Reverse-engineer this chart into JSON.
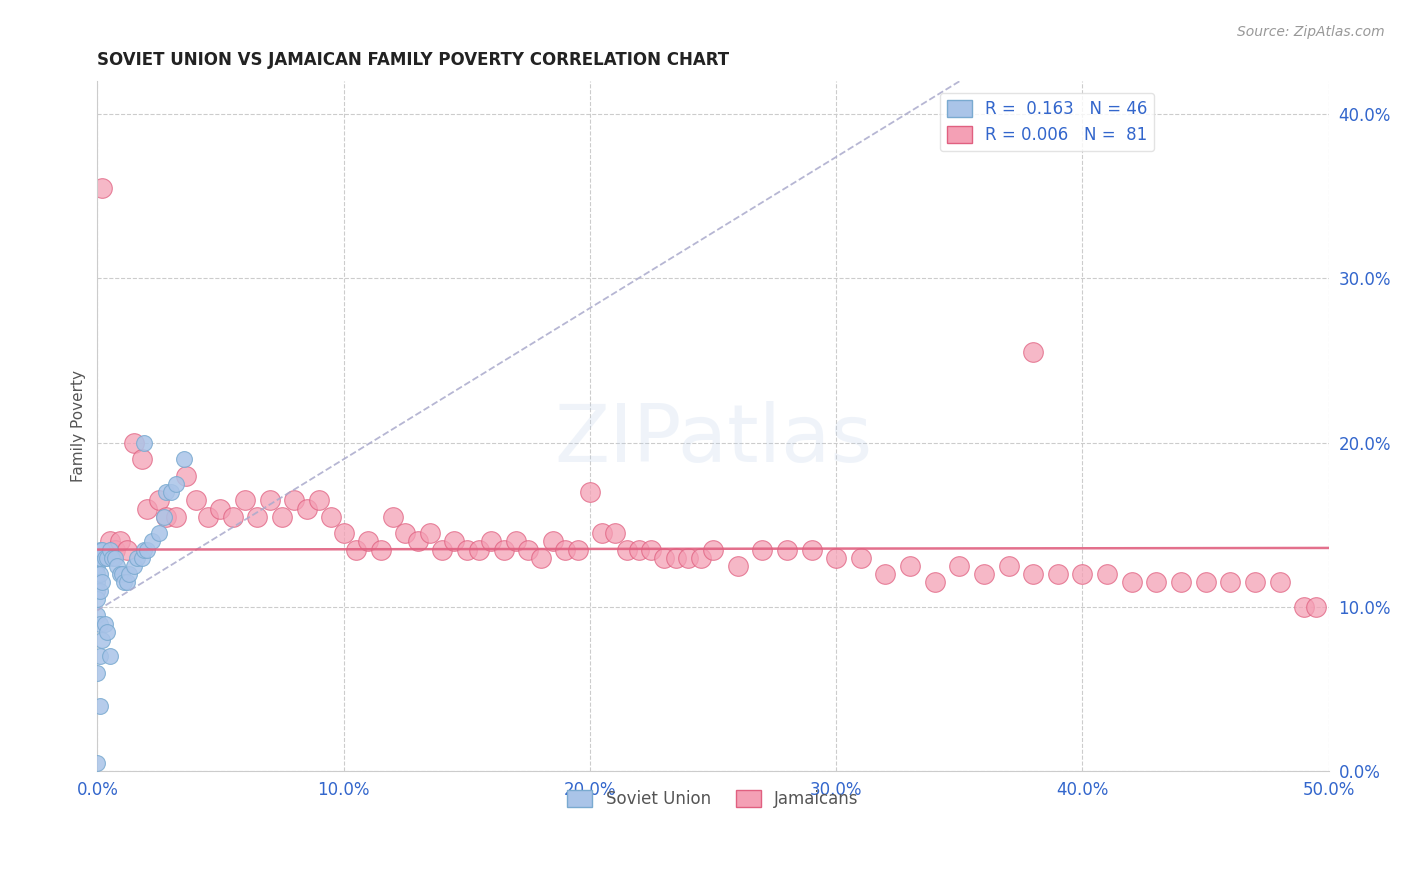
{
  "title": "SOVIET UNION VS JAMAICAN FAMILY POVERTY CORRELATION CHART",
  "source": "Source: ZipAtlas.com",
  "ylabel": "Family Poverty",
  "xlim": [
    0.0,
    0.5
  ],
  "ylim": [
    0.0,
    0.42
  ],
  "xticks": [
    0.0,
    0.1,
    0.2,
    0.3,
    0.4,
    0.5
  ],
  "xtick_labels": [
    "0.0%",
    "10.0%",
    "20.0%",
    "30.0%",
    "40.0%",
    "50.0%"
  ],
  "ytick_labels_right": [
    "0.0%",
    "10.0%",
    "20.0%",
    "30.0%",
    "40.0%"
  ],
  "yticks_right": [
    0.0,
    0.1,
    0.2,
    0.3,
    0.4
  ],
  "grid_color": "#cccccc",
  "background_color": "#ffffff",
  "soviet_color": "#aac4e8",
  "soviet_edge_color": "#7aaad0",
  "jamaican_color": "#f4a0b5",
  "jamaican_edge_color": "#e06080",
  "soviet_R": 0.163,
  "soviet_N": 46,
  "jamaican_R": 0.006,
  "jamaican_N": 81,
  "watermark_text": "ZIPatlas",
  "soviet_scatter_x": [
    0.0,
    0.0,
    0.0,
    0.0,
    0.0,
    0.0,
    0.0,
    0.0,
    0.0,
    0.001,
    0.001,
    0.001,
    0.001,
    0.001,
    0.001,
    0.001,
    0.002,
    0.002,
    0.002,
    0.003,
    0.003,
    0.004,
    0.004,
    0.005,
    0.005,
    0.006,
    0.007,
    0.008,
    0.009,
    0.01,
    0.011,
    0.012,
    0.013,
    0.015,
    0.016,
    0.018,
    0.019,
    0.02,
    0.022,
    0.025,
    0.027,
    0.028,
    0.03,
    0.032,
    0.035,
    0.019
  ],
  "soviet_scatter_y": [
    0.13,
    0.125,
    0.12,
    0.115,
    0.11,
    0.105,
    0.095,
    0.06,
    0.005,
    0.135,
    0.13,
    0.12,
    0.11,
    0.09,
    0.07,
    0.04,
    0.135,
    0.115,
    0.08,
    0.13,
    0.09,
    0.13,
    0.085,
    0.135,
    0.07,
    0.13,
    0.13,
    0.125,
    0.12,
    0.12,
    0.115,
    0.115,
    0.12,
    0.125,
    0.13,
    0.13,
    0.135,
    0.135,
    0.14,
    0.145,
    0.155,
    0.17,
    0.17,
    0.175,
    0.19,
    0.2
  ],
  "jamaican_scatter_x": [
    0.002,
    0.005,
    0.007,
    0.009,
    0.012,
    0.015,
    0.018,
    0.02,
    0.025,
    0.028,
    0.032,
    0.036,
    0.04,
    0.045,
    0.05,
    0.055,
    0.06,
    0.065,
    0.07,
    0.075,
    0.08,
    0.085,
    0.09,
    0.095,
    0.1,
    0.105,
    0.11,
    0.115,
    0.12,
    0.125,
    0.13,
    0.135,
    0.14,
    0.145,
    0.15,
    0.155,
    0.16,
    0.165,
    0.17,
    0.175,
    0.18,
    0.185,
    0.19,
    0.195,
    0.2,
    0.205,
    0.21,
    0.215,
    0.22,
    0.225,
    0.23,
    0.235,
    0.24,
    0.245,
    0.25,
    0.26,
    0.27,
    0.28,
    0.29,
    0.3,
    0.31,
    0.32,
    0.33,
    0.34,
    0.35,
    0.36,
    0.37,
    0.38,
    0.39,
    0.4,
    0.41,
    0.42,
    0.43,
    0.44,
    0.45,
    0.46,
    0.47,
    0.48,
    0.49,
    0.495,
    0.38
  ],
  "jamaican_scatter_y": [
    0.355,
    0.14,
    0.135,
    0.14,
    0.135,
    0.2,
    0.19,
    0.16,
    0.165,
    0.155,
    0.155,
    0.18,
    0.165,
    0.155,
    0.16,
    0.155,
    0.165,
    0.155,
    0.165,
    0.155,
    0.165,
    0.16,
    0.165,
    0.155,
    0.145,
    0.135,
    0.14,
    0.135,
    0.155,
    0.145,
    0.14,
    0.145,
    0.135,
    0.14,
    0.135,
    0.135,
    0.14,
    0.135,
    0.14,
    0.135,
    0.13,
    0.14,
    0.135,
    0.135,
    0.17,
    0.145,
    0.145,
    0.135,
    0.135,
    0.135,
    0.13,
    0.13,
    0.13,
    0.13,
    0.135,
    0.125,
    0.135,
    0.135,
    0.135,
    0.13,
    0.13,
    0.12,
    0.125,
    0.115,
    0.125,
    0.12,
    0.125,
    0.12,
    0.12,
    0.12,
    0.12,
    0.115,
    0.115,
    0.115,
    0.115,
    0.115,
    0.115,
    0.115,
    0.1,
    0.1,
    0.255
  ],
  "soviet_trend_x": [
    0.0,
    0.4
  ],
  "soviet_trend_y_intercept": 0.098,
  "soviet_trend_slope": 0.92,
  "jamaican_trend_y": 0.135,
  "soviet_trend_color": "#aaaacc",
  "jamaican_trend_color": "#e06080"
}
